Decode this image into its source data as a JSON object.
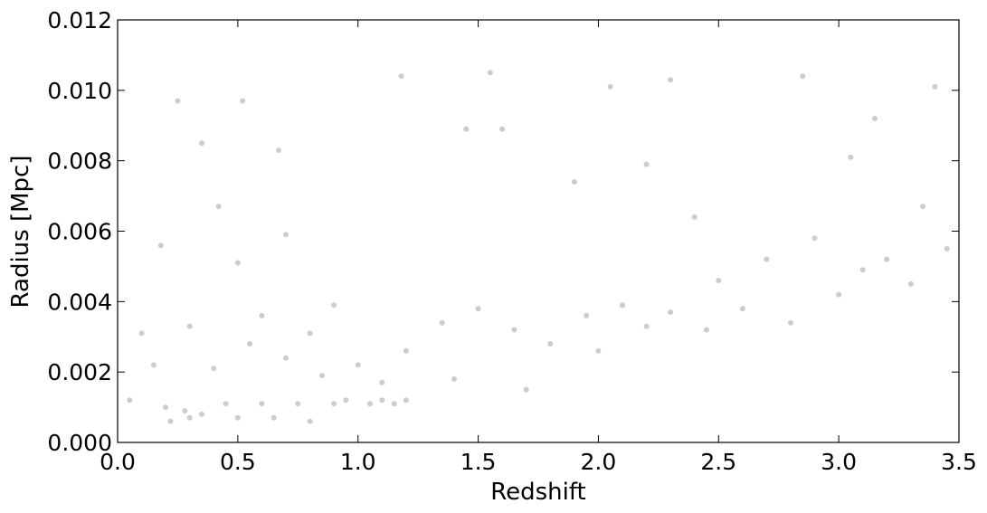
{
  "chart_data": {
    "type": "scatter",
    "title": "",
    "xlabel": "Redshift",
    "ylabel": "Radius [Mpc]",
    "xlim": [
      0.0,
      3.5
    ],
    "ylim": [
      0.0,
      0.012
    ],
    "xticks": [
      "0.0",
      "0.5",
      "1.0",
      "1.5",
      "2.0",
      "2.5",
      "3.0",
      "3.5"
    ],
    "yticks": [
      "0.000",
      "0.002",
      "0.004",
      "0.006",
      "0.008",
      "0.010",
      "0.012"
    ],
    "grid": false,
    "legend": "none",
    "marker_color": "#000000",
    "marker_alpha": 0.2,
    "x": [
      0.22,
      0.3,
      0.45,
      0.6,
      0.75,
      0.9,
      1.05,
      1.15,
      0.28,
      0.35,
      0.5,
      0.2,
      0.65,
      0.8,
      0.95,
      1.1,
      1.2,
      0.4,
      0.55,
      0.7,
      0.85,
      1.0,
      0.3,
      0.6,
      0.9,
      1.2,
      1.35,
      1.5,
      1.1,
      0.8,
      1.65,
      1.8,
      1.95,
      2.1,
      2.2,
      1.4,
      1.7,
      2.0,
      2.3,
      2.45,
      2.5,
      2.7,
      2.9,
      3.1,
      3.3,
      3.45,
      2.6,
      2.8,
      3.0,
      3.2,
      0.25,
      0.35,
      0.52,
      0.67,
      0.7,
      1.18,
      1.45,
      1.55,
      2.05,
      2.3,
      2.85,
      3.15,
      3.4,
      2.2,
      3.35,
      0.5,
      1.6,
      1.9,
      2.4,
      3.05,
      0.15,
      0.1,
      0.18,
      0.05,
      0.42
    ],
    "y": [
      0.0006,
      0.0007,
      0.0011,
      0.0011,
      0.0011,
      0.0011,
      0.0011,
      0.0011,
      0.0009,
      0.0008,
      0.0007,
      0.001,
      0.0007,
      0.0006,
      0.0012,
      0.0012,
      0.0012,
      0.0021,
      0.0028,
      0.0024,
      0.0019,
      0.0022,
      0.0033,
      0.0036,
      0.0039,
      0.0026,
      0.0034,
      0.0038,
      0.0017,
      0.0031,
      0.0032,
      0.0028,
      0.0036,
      0.0039,
      0.0033,
      0.0018,
      0.0015,
      0.0026,
      0.0037,
      0.0032,
      0.0046,
      0.0052,
      0.0058,
      0.0049,
      0.0045,
      0.0055,
      0.0038,
      0.0034,
      0.0042,
      0.0052,
      0.0097,
      0.0085,
      0.0097,
      0.0083,
      0.0059,
      0.0104,
      0.0089,
      0.0105,
      0.0101,
      0.0103,
      0.0104,
      0.0092,
      0.0101,
      0.0079,
      0.0067,
      0.0051,
      0.0089,
      0.0074,
      0.0064,
      0.0081,
      0.0022,
      0.0031,
      0.0056,
      0.0012,
      0.0067
    ]
  }
}
